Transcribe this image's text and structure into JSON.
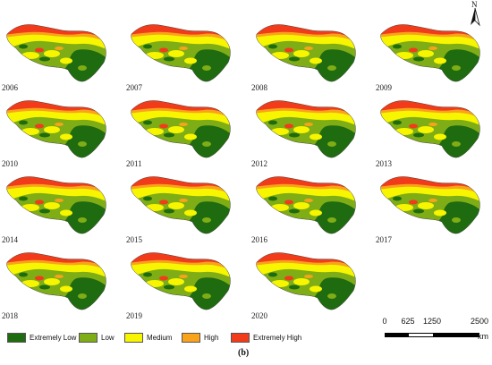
{
  "figure": {
    "caption": "(b)",
    "north_label": "N"
  },
  "colors": {
    "extremely_low": "#1f6b10",
    "low": "#7fad15",
    "medium": "#f8f500",
    "high": "#f9a31b",
    "extremely_high": "#f23b1b"
  },
  "legend": [
    {
      "label": "Extremely Low",
      "color": "#1f6b10"
    },
    {
      "label": "Low",
      "color": "#7fad15"
    },
    {
      "label": "Medium",
      "color": "#f8f500"
    },
    {
      "label": "High",
      "color": "#f9a31b"
    },
    {
      "label": "Extremely High",
      "color": "#f23b1b"
    }
  ],
  "panels": [
    {
      "year": "2006"
    },
    {
      "year": "2007"
    },
    {
      "year": "2008"
    },
    {
      "year": "2009"
    },
    {
      "year": "2010"
    },
    {
      "year": "2011"
    },
    {
      "year": "2012"
    },
    {
      "year": "2013"
    },
    {
      "year": "2014"
    },
    {
      "year": "2015"
    },
    {
      "year": "2016"
    },
    {
      "year": "2017"
    },
    {
      "year": "2018"
    },
    {
      "year": "2019"
    },
    {
      "year": "2020"
    }
  ],
  "scale_bar": {
    "ticks": [
      "0",
      "625",
      "1250",
      "2500"
    ],
    "unit": "km"
  }
}
